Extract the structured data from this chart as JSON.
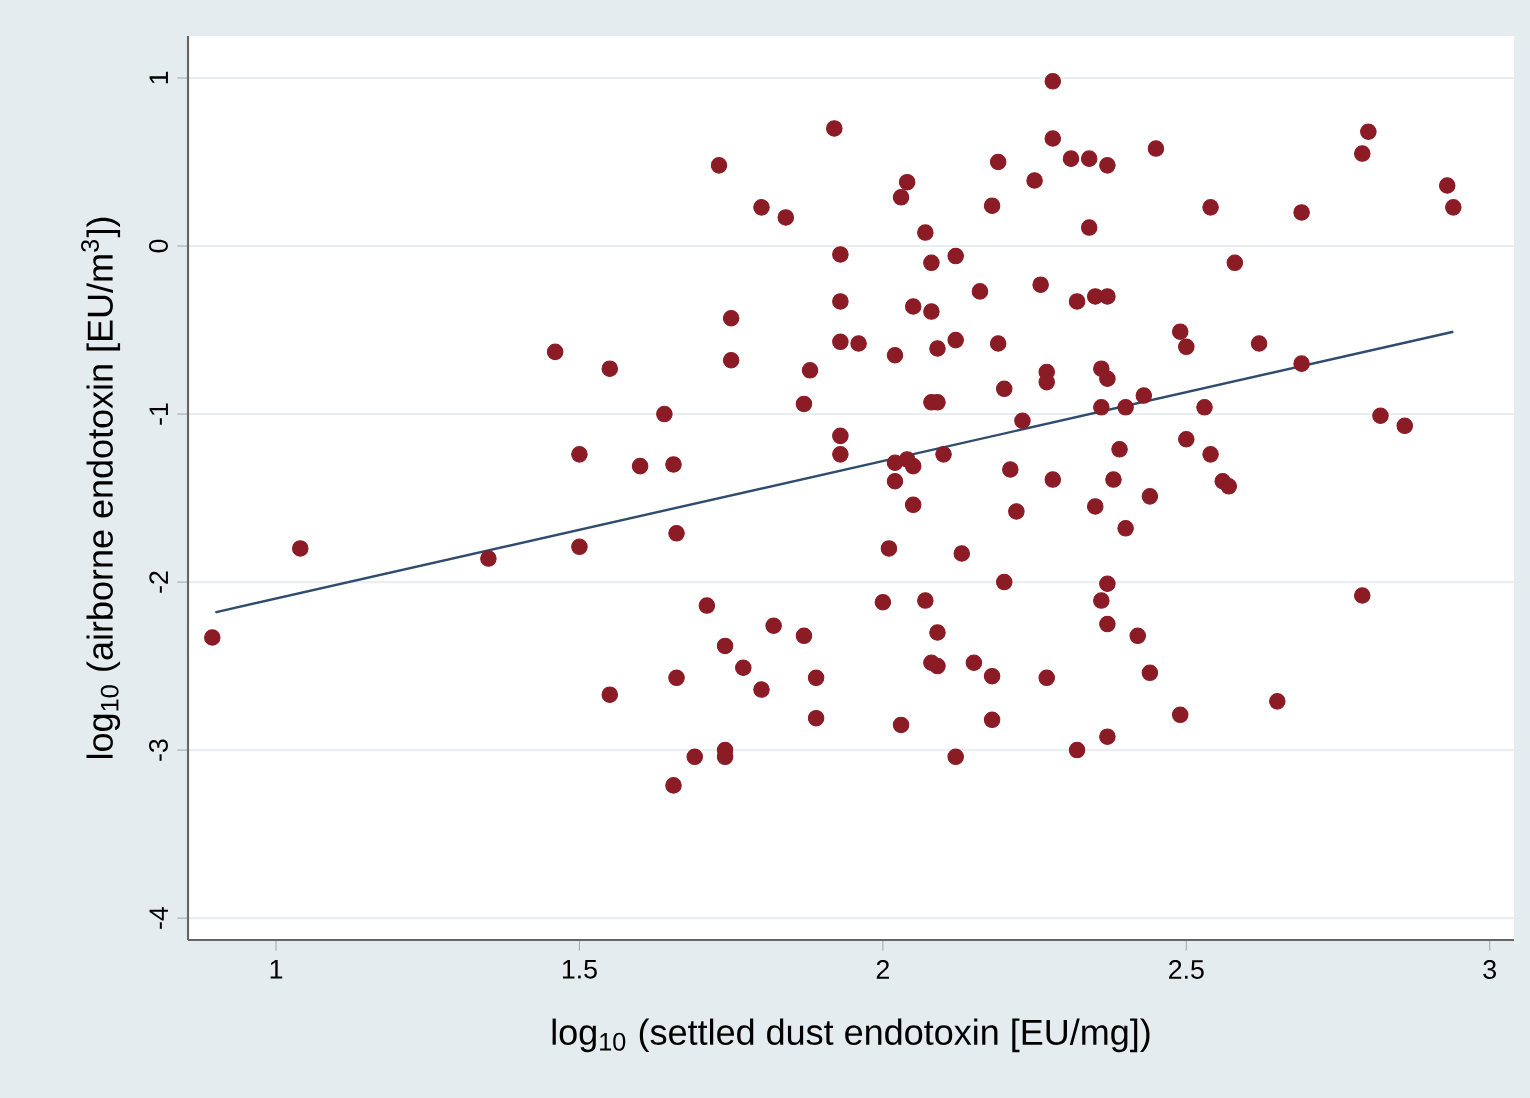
{
  "chart_data": {
    "type": "scatter",
    "xlabel": "log$_{10}$ (settled dust endotoxin [EU/mg])",
    "ylabel": "log$_{10}$ (airborne endotoxin [EU/m$^{3}$])",
    "xlim": [
      0.855,
      3.04
    ],
    "ylim": [
      -4.13,
      1.25
    ],
    "xticks": [
      1,
      1.5,
      2,
      2.5,
      3
    ],
    "yticks": [
      -4,
      -3,
      -2,
      -1,
      0,
      1
    ],
    "grid": "y",
    "series": [
      {
        "color": "#8b1c26",
        "marker": "circle",
        "x": [
          0.895,
          1.04,
          1.35,
          1.5,
          1.66,
          1.6,
          1.655,
          1.5,
          1.71,
          1.82,
          1.87,
          1.74,
          1.77,
          1.89,
          1.66,
          1.55,
          1.8,
          1.89,
          1.69,
          1.74,
          1.74,
          1.655,
          1.92,
          1.73,
          1.8,
          1.84,
          1.93,
          1.93,
          1.75,
          1.93,
          1.46,
          1.55,
          1.75,
          1.88,
          1.87,
          1.64,
          1.93,
          1.93,
          2.28,
          2.28,
          2.19,
          2.31,
          2.34,
          2.37,
          2.45,
          2.04,
          2.03,
          2.25,
          2.18,
          2.8,
          2.79,
          2.93,
          2.94,
          2.54,
          2.69,
          2.34,
          2.07,
          2.08,
          2.12,
          2.58,
          2.05,
          2.08,
          2.16,
          2.26,
          2.32,
          2.35,
          2.37,
          1.96,
          2.02,
          2.09,
          2.12,
          2.19,
          2.49,
          2.5,
          2.62,
          2.69,
          2.27,
          2.27,
          2.36,
          2.37,
          2.2,
          2.08,
          2.09,
          2.36,
          2.4,
          2.43,
          2.53,
          2.23,
          2.82,
          2.86,
          2.1,
          2.39,
          2.5,
          2.54,
          2.02,
          2.04,
          2.05,
          2.02,
          2.21,
          2.28,
          2.38,
          2.56,
          2.57,
          2.44,
          2.05,
          2.22,
          2.35,
          2.4,
          2.01,
          2.13,
          2.2,
          2.37,
          2.36,
          2.79,
          2.0,
          2.07,
          2.09,
          2.37,
          2.42,
          2.08,
          2.09,
          2.15,
          2.18,
          2.27,
          2.44,
          2.03,
          2.18,
          2.49,
          2.65,
          2.37,
          2.32,
          2.12
        ],
        "values": [
          -2.33,
          -1.8,
          -1.86,
          -1.79,
          -1.71,
          -1.31,
          -1.3,
          -1.24,
          -2.14,
          -2.26,
          -2.32,
          -2.38,
          -2.51,
          -2.57,
          -2.57,
          -2.67,
          -2.64,
          -2.81,
          -3.04,
          -3.0,
          -3.04,
          -3.21,
          0.7,
          0.48,
          0.23,
          0.17,
          -0.05,
          -0.33,
          -0.43,
          -0.57,
          -0.63,
          -0.73,
          -0.68,
          -0.74,
          -0.94,
          -1.0,
          -1.13,
          -1.24,
          0.98,
          0.64,
          0.5,
          0.52,
          0.52,
          0.48,
          0.58,
          0.38,
          0.29,
          0.39,
          0.24,
          0.68,
          0.55,
          0.36,
          0.23,
          0.23,
          0.2,
          0.11,
          0.08,
          -0.1,
          -0.06,
          -0.1,
          -0.36,
          -0.39,
          -0.27,
          -0.23,
          -0.33,
          -0.3,
          -0.3,
          -0.58,
          -0.65,
          -0.61,
          -0.56,
          -0.58,
          -0.51,
          -0.6,
          -0.58,
          -0.7,
          -0.75,
          -0.81,
          -0.73,
          -0.79,
          -0.85,
          -0.93,
          -0.93,
          -0.96,
          -0.96,
          -0.89,
          -0.96,
          -1.04,
          -1.01,
          -1.07,
          -1.24,
          -1.21,
          -1.15,
          -1.24,
          -1.29,
          -1.27,
          -1.31,
          -1.4,
          -1.33,
          -1.39,
          -1.39,
          -1.4,
          -1.43,
          -1.49,
          -1.54,
          -1.58,
          -1.55,
          -1.68,
          -1.8,
          -1.83,
          -2.0,
          -2.01,
          -2.11,
          -2.08,
          -2.12,
          -2.11,
          -2.3,
          -2.25,
          -2.32,
          -2.48,
          -2.5,
          -2.48,
          -2.56,
          -2.57,
          -2.54,
          -2.85,
          -2.82,
          -2.79,
          -2.71,
          -2.92,
          -3.0,
          -3.04
        ]
      },
      {
        "type": "line",
        "marker": "none",
        "color": "#2f4b6e",
        "x": [
          0.9,
          2.94
        ],
        "values": [
          -2.18,
          -0.51
        ]
      }
    ]
  }
}
